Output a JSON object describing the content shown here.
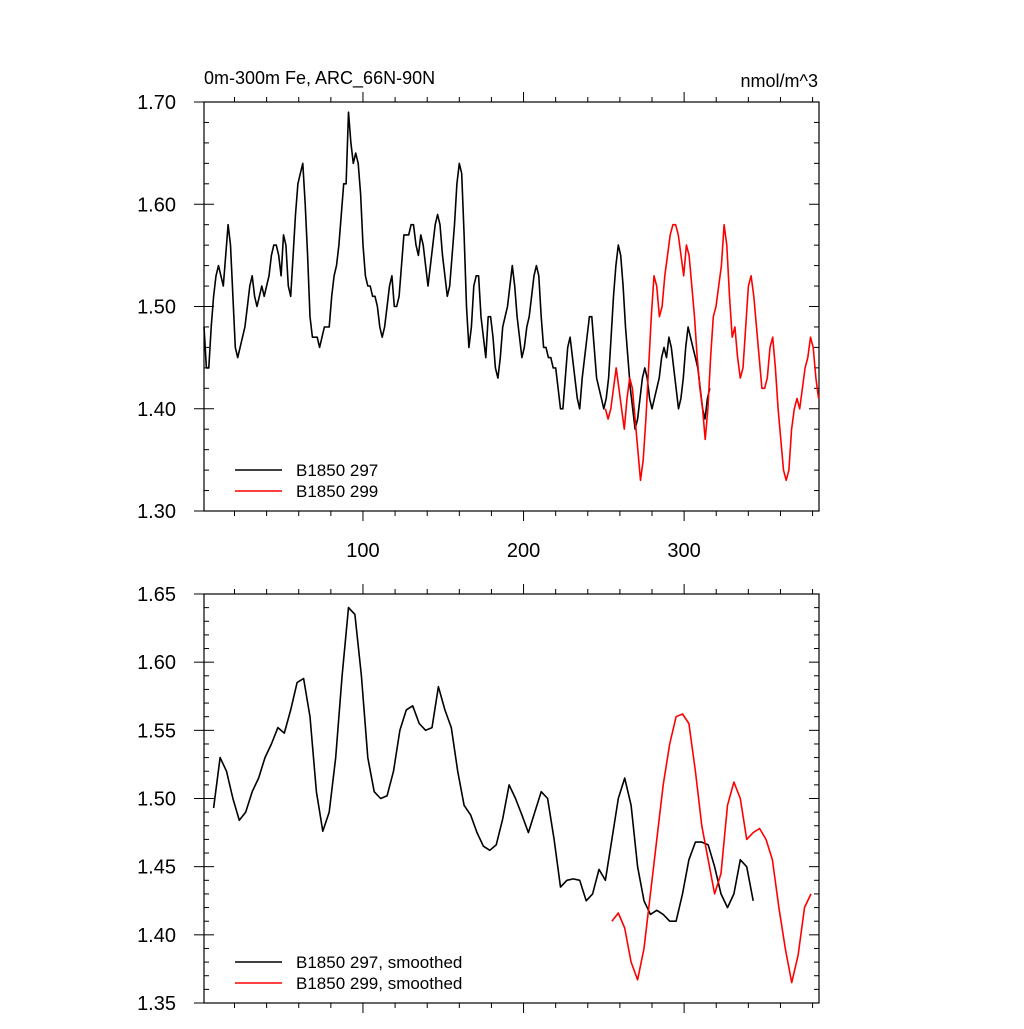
{
  "chart_data": [
    {
      "type": "line",
      "title": "0m-300m Fe, ARC_66N-90N",
      "units_label": "nmol/m^3",
      "xlim": [
        1,
        384
      ],
      "ylim": [
        1.3,
        1.7
      ],
      "xticks": [
        100,
        200,
        300
      ],
      "yticks": [
        1.3,
        1.4,
        1.5,
        1.6,
        1.7
      ],
      "ytick_labels": [
        "1.30",
        "1.40",
        "1.50",
        "1.60",
        "1.70"
      ],
      "legend_position": "bottom-left",
      "series": [
        {
          "name": "B1850 297",
          "color": "#000000",
          "x0": 1,
          "values": [
            1.48,
            1.44,
            1.44,
            1.48,
            1.51,
            1.53,
            1.54,
            1.53,
            1.52,
            1.55,
            1.58,
            1.56,
            1.51,
            1.46,
            1.45,
            1.46,
            1.47,
            1.48,
            1.5,
            1.52,
            1.53,
            1.51,
            1.5,
            1.51,
            1.52,
            1.51,
            1.52,
            1.53,
            1.55,
            1.56,
            1.56,
            1.55,
            1.53,
            1.57,
            1.56,
            1.52,
            1.51,
            1.55,
            1.59,
            1.62,
            1.63,
            1.64,
            1.6,
            1.55,
            1.49,
            1.47,
            1.47,
            1.47,
            1.46,
            1.47,
            1.48,
            1.48,
            1.48,
            1.51,
            1.53,
            1.54,
            1.56,
            1.59,
            1.62,
            1.62,
            1.69,
            1.66,
            1.64,
            1.65,
            1.64,
            1.61,
            1.56,
            1.53,
            1.52,
            1.52,
            1.51,
            1.51,
            1.5,
            1.48,
            1.47,
            1.48,
            1.5,
            1.52,
            1.53,
            1.5,
            1.5,
            1.51,
            1.54,
            1.57,
            1.57,
            1.57,
            1.58,
            1.58,
            1.56,
            1.55,
            1.57,
            1.56,
            1.54,
            1.52,
            1.54,
            1.56,
            1.58,
            1.59,
            1.58,
            1.55,
            1.53,
            1.51,
            1.52,
            1.55,
            1.58,
            1.62,
            1.64,
            1.63,
            1.57,
            1.5,
            1.46,
            1.48,
            1.52,
            1.53,
            1.53,
            1.49,
            1.47,
            1.45,
            1.49,
            1.49,
            1.47,
            1.44,
            1.43,
            1.45,
            1.48,
            1.49,
            1.5,
            1.52,
            1.54,
            1.52,
            1.49,
            1.47,
            1.45,
            1.46,
            1.48,
            1.49,
            1.51,
            1.53,
            1.54,
            1.53,
            1.49,
            1.46,
            1.46,
            1.45,
            1.45,
            1.44,
            1.44,
            1.42,
            1.4,
            1.4,
            1.43,
            1.46,
            1.47,
            1.45,
            1.43,
            1.41,
            1.4,
            1.43,
            1.45,
            1.47,
            1.49,
            1.49,
            1.46,
            1.43,
            1.42,
            1.41,
            1.4,
            1.41,
            1.43,
            1.47,
            1.51,
            1.54,
            1.56,
            1.55,
            1.52,
            1.48,
            1.45,
            1.42,
            1.4,
            1.38,
            1.39,
            1.41,
            1.43,
            1.44,
            1.43,
            1.41,
            1.4,
            1.41,
            1.42,
            1.43,
            1.45,
            1.46,
            1.45,
            1.47,
            1.46,
            1.44,
            1.42,
            1.4,
            1.41,
            1.43,
            1.46,
            1.48,
            1.47,
            1.46,
            1.45,
            1.44,
            1.42,
            1.4,
            1.39,
            1.41,
            1.42
          ],
          "note": "sampled every ~2 years, x0 = 1, step = 1.5"
        },
        {
          "name": "B1850 299",
          "color": "#ff0000",
          "x0": 251,
          "values": [
            1.4,
            1.39,
            1.4,
            1.42,
            1.44,
            1.42,
            1.4,
            1.38,
            1.41,
            1.43,
            1.42,
            1.39,
            1.36,
            1.33,
            1.35,
            1.39,
            1.44,
            1.49,
            1.53,
            1.52,
            1.49,
            1.5,
            1.53,
            1.55,
            1.57,
            1.58,
            1.58,
            1.57,
            1.55,
            1.53,
            1.56,
            1.55,
            1.52,
            1.49,
            1.45,
            1.42,
            1.4,
            1.37,
            1.4,
            1.45,
            1.49,
            1.5,
            1.52,
            1.54,
            1.58,
            1.56,
            1.51,
            1.47,
            1.48,
            1.45,
            1.43,
            1.44,
            1.48,
            1.52,
            1.53,
            1.51,
            1.48,
            1.45,
            1.42,
            1.42,
            1.43,
            1.46,
            1.47,
            1.44,
            1.4,
            1.37,
            1.34,
            1.33,
            1.34,
            1.38,
            1.4,
            1.41,
            1.4,
            1.42,
            1.44,
            1.45,
            1.47,
            1.46,
            1.43,
            1.41
          ],
          "note": "x0 = 251, step = 1.68"
        }
      ],
      "legend": [
        "B1850 297",
        "B1850 299"
      ]
    },
    {
      "type": "line",
      "title": "",
      "xlim": [
        1,
        384
      ],
      "ylim": [
        1.35,
        1.65
      ],
      "xticks": [
        100,
        200,
        300
      ],
      "yticks": [
        1.35,
        1.4,
        1.45,
        1.5,
        1.55,
        1.6,
        1.65
      ],
      "ytick_labels": [
        "1.35",
        "1.40",
        "1.45",
        "1.50",
        "1.55",
        "1.60",
        "1.65"
      ],
      "legend_position": "bottom-left",
      "series": [
        {
          "name": "B1850 297, smoothed",
          "color": "#000000",
          "x0": 7,
          "step": 4,
          "values": [
            1.493,
            1.53,
            1.52,
            1.5,
            1.484,
            1.49,
            1.505,
            1.515,
            1.53,
            1.54,
            1.552,
            1.548,
            1.565,
            1.585,
            1.588,
            1.56,
            1.505,
            1.476,
            1.49,
            1.53,
            1.59,
            1.64,
            1.635,
            1.59,
            1.53,
            1.505,
            1.5,
            1.502,
            1.52,
            1.55,
            1.565,
            1.568,
            1.555,
            1.55,
            1.552,
            1.582,
            1.565,
            1.552,
            1.52,
            1.495,
            1.488,
            1.475,
            1.465,
            1.462,
            1.466,
            1.485,
            1.51,
            1.5,
            1.488,
            1.475,
            1.49,
            1.505,
            1.5,
            1.47,
            1.435,
            1.44,
            1.441,
            1.44,
            1.425,
            1.43,
            1.448,
            1.44,
            1.47,
            1.5,
            1.515,
            1.495,
            1.45,
            1.425,
            1.415,
            1.418,
            1.415,
            1.41,
            1.41,
            1.43,
            1.455,
            1.468,
            1.468,
            1.466,
            1.45,
            1.43,
            1.42,
            1.43,
            1.455,
            1.45,
            1.425
          ]
        },
        {
          "name": "B1850 299, smoothed",
          "color": "#ff0000",
          "x0": 255,
          "step": 4,
          "values": [
            1.41,
            1.416,
            1.405,
            1.38,
            1.367,
            1.39,
            1.43,
            1.47,
            1.51,
            1.54,
            1.56,
            1.562,
            1.555,
            1.52,
            1.48,
            1.455,
            1.43,
            1.445,
            1.495,
            1.512,
            1.5,
            1.47,
            1.475,
            1.478,
            1.47,
            1.455,
            1.42,
            1.39,
            1.365,
            1.385,
            1.42,
            1.43
          ]
        }
      ],
      "legend": [
        "B1850 297, smoothed",
        "B1850 299, smoothed"
      ]
    }
  ]
}
